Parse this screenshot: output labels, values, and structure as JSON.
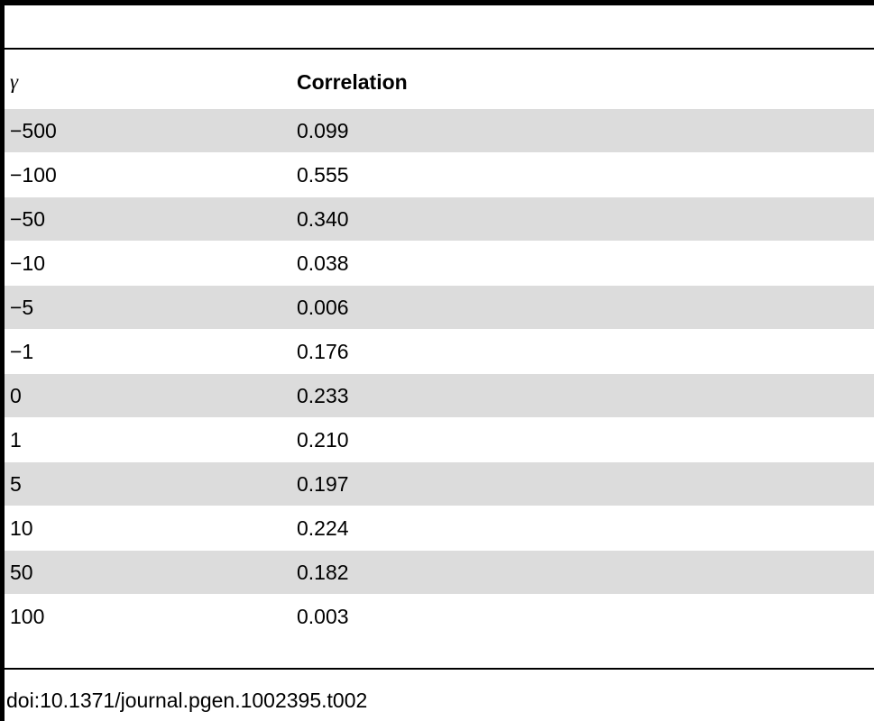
{
  "table": {
    "headers": {
      "col1": "γ",
      "col2": "Correlation"
    },
    "rows": [
      {
        "gamma": "−500",
        "correlation": "0.099"
      },
      {
        "gamma": "−100",
        "correlation": "0.555"
      },
      {
        "gamma": "−50",
        "correlation": "0.340"
      },
      {
        "gamma": "−10",
        "correlation": "0.038"
      },
      {
        "gamma": "−5",
        "correlation": "0.006"
      },
      {
        "gamma": "−1",
        "correlation": "0.176"
      },
      {
        "gamma": "0",
        "correlation": "0.233"
      },
      {
        "gamma": "1",
        "correlation": "0.210"
      },
      {
        "gamma": "5",
        "correlation": "0.197"
      },
      {
        "gamma": "10",
        "correlation": "0.224"
      },
      {
        "gamma": "50",
        "correlation": "0.182"
      },
      {
        "gamma": "100",
        "correlation": "0.003"
      }
    ]
  },
  "footer": {
    "doi": "doi:10.1371/journal.pgen.1002395.t002"
  },
  "colors": {
    "row_shade": "#dcdcdc",
    "rule": "#000000"
  }
}
